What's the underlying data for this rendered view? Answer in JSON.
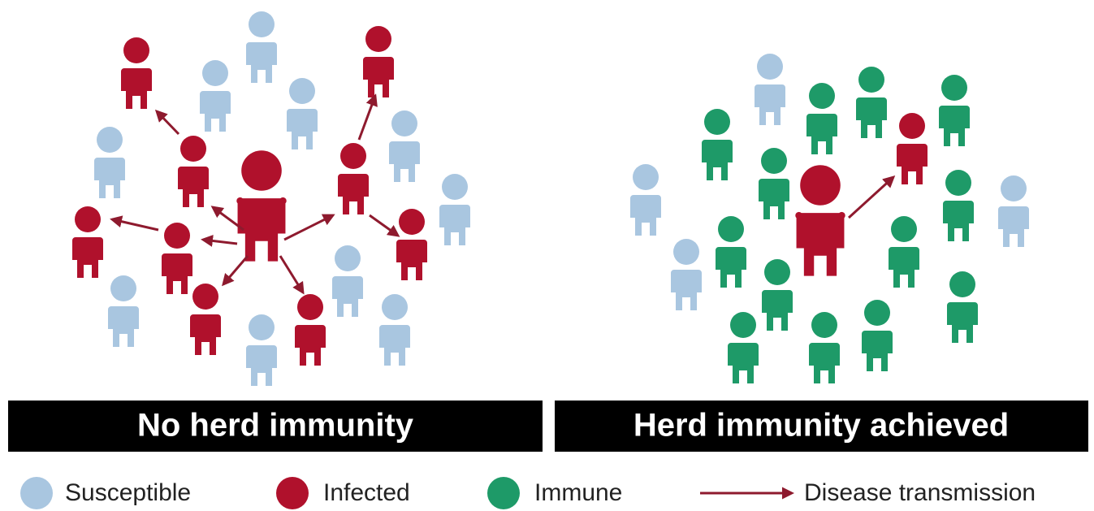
{
  "panels": [
    {
      "title": "No herd immunity"
    },
    {
      "title": "Herd immunity achieved"
    }
  ],
  "legend": [
    {
      "label": "Susceptible",
      "color": "#a9c6e0"
    },
    {
      "label": "Infected",
      "color": "#b0112c"
    },
    {
      "label": "Immune",
      "color": "#1e9a68"
    },
    {
      "label": "Disease transmission",
      "color": "#8e1a2e"
    }
  ]
}
